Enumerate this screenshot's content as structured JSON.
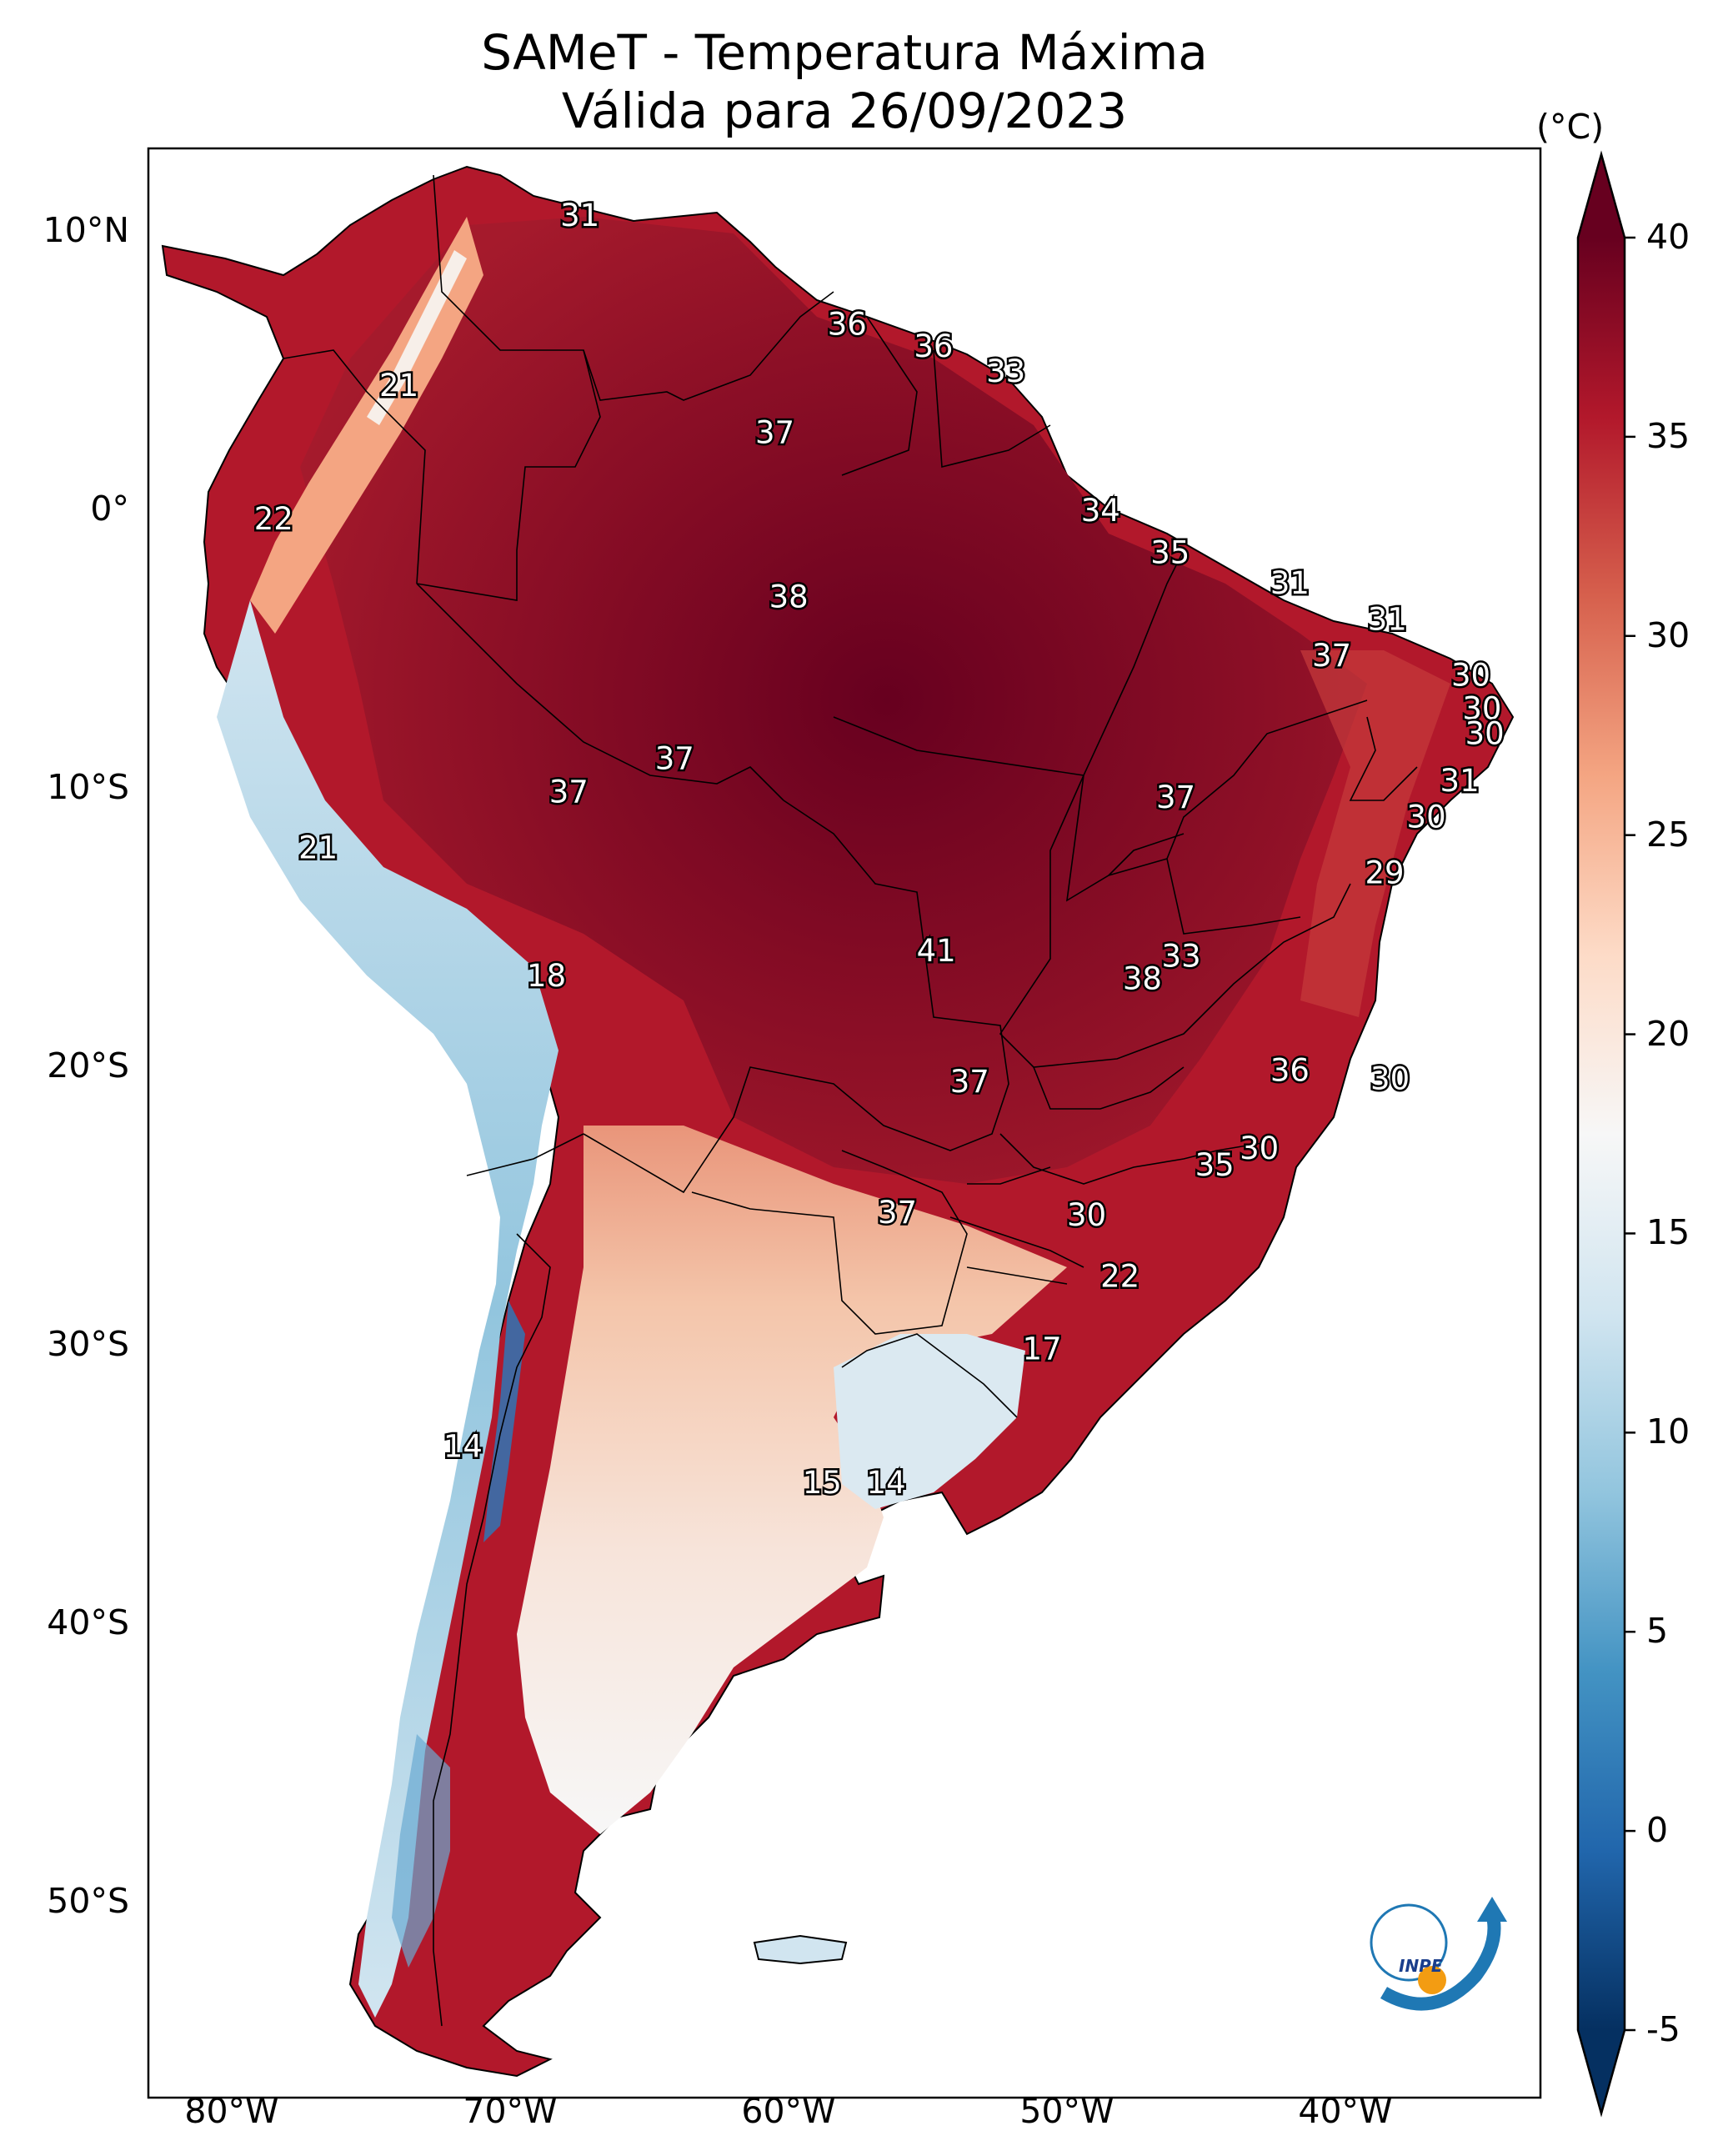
{
  "title": "SAMeT - Temperatura Máxima",
  "subtitle": "Válida para 26/09/2023",
  "colorbar": {
    "unit": "(°C)",
    "range": [
      -5,
      40
    ],
    "ticks": [
      "40",
      "35",
      "30",
      "25",
      "20",
      "15",
      "10",
      "5",
      "0",
      "-5"
    ],
    "colors": [
      "#053061",
      "#2166ac",
      "#4393c3",
      "#92c5de",
      "#d1e5f0",
      "#f7f7f7",
      "#fddbc7",
      "#f4a582",
      "#d6604d",
      "#b2182b",
      "#67001f"
    ]
  },
  "axes": {
    "lat_labels": [
      "10°N",
      "0°",
      "10°S",
      "20°S",
      "30°S",
      "40°S",
      "50°S"
    ],
    "lon_labels": [
      "80°W",
      "70°W",
      "60°W",
      "50°W",
      "40°W"
    ]
  },
  "extent": {
    "lon": [
      -82.5,
      -32.5
    ],
    "lat": [
      -57,
      13
    ]
  },
  "logo_text": "INPE",
  "labels": [
    {
      "v": "31",
      "lon": -67,
      "lat": 10.6
    },
    {
      "v": "21",
      "lon": -73.5,
      "lat": 4.5
    },
    {
      "v": "22",
      "lon": -78,
      "lat": -0.3
    },
    {
      "v": "36",
      "lon": -57.4,
      "lat": 6.7
    },
    {
      "v": "36",
      "lon": -54.3,
      "lat": 5.9
    },
    {
      "v": "33",
      "lon": -51.7,
      "lat": 5.0
    },
    {
      "v": "37",
      "lon": -60,
      "lat": 2.8
    },
    {
      "v": "34",
      "lon": -48.3,
      "lat": 0
    },
    {
      "v": "35",
      "lon": -45.8,
      "lat": -1.5
    },
    {
      "v": "38",
      "lon": -59.5,
      "lat": -3.1
    },
    {
      "v": "31",
      "lon": -41.5,
      "lat": -2.6
    },
    {
      "v": "31",
      "lon": -38,
      "lat": -3.9
    },
    {
      "v": "37",
      "lon": -40,
      "lat": -5.2
    },
    {
      "v": "30",
      "lon": -35,
      "lat": -5.9
    },
    {
      "v": "30",
      "lon": -34.6,
      "lat": -7.1
    },
    {
      "v": "30",
      "lon": -34.5,
      "lat": -8.0
    },
    {
      "v": "37",
      "lon": -63.6,
      "lat": -8.9
    },
    {
      "v": "37",
      "lon": -67.4,
      "lat": -10.1
    },
    {
      "v": "37",
      "lon": -45.6,
      "lat": -10.3
    },
    {
      "v": "31",
      "lon": -35.4,
      "lat": -9.7
    },
    {
      "v": "30",
      "lon": -36.6,
      "lat": -11.0
    },
    {
      "v": "21",
      "lon": -76.4,
      "lat": -12.1
    },
    {
      "v": "29",
      "lon": -38.1,
      "lat": -13.0
    },
    {
      "v": "41",
      "lon": -54.2,
      "lat": -15.8
    },
    {
      "v": "33",
      "lon": -45.4,
      "lat": -16.0
    },
    {
      "v": "38",
      "lon": -46.8,
      "lat": -16.8
    },
    {
      "v": "18",
      "lon": -68.2,
      "lat": -16.7
    },
    {
      "v": "36",
      "lon": -41.5,
      "lat": -20.1
    },
    {
      "v": "37",
      "lon": -53,
      "lat": -20.5
    },
    {
      "v": "30",
      "lon": -37.9,
      "lat": -20.4
    },
    {
      "v": "30",
      "lon": -42.6,
      "lat": -22.9
    },
    {
      "v": "35",
      "lon": -44.2,
      "lat": -23.5
    },
    {
      "v": "37",
      "lon": -55.6,
      "lat": -25.2
    },
    {
      "v": "30",
      "lon": -48.8,
      "lat": -25.3
    },
    {
      "v": "22",
      "lon": -47.6,
      "lat": -27.5
    },
    {
      "v": "17",
      "lon": -50.4,
      "lat": -30.1
    },
    {
      "v": "14",
      "lon": -71.2,
      "lat": -33.6
    },
    {
      "v": "15",
      "lon": -58.3,
      "lat": -34.9
    },
    {
      "v": "14",
      "lon": -56,
      "lat": -34.9
    }
  ]
}
